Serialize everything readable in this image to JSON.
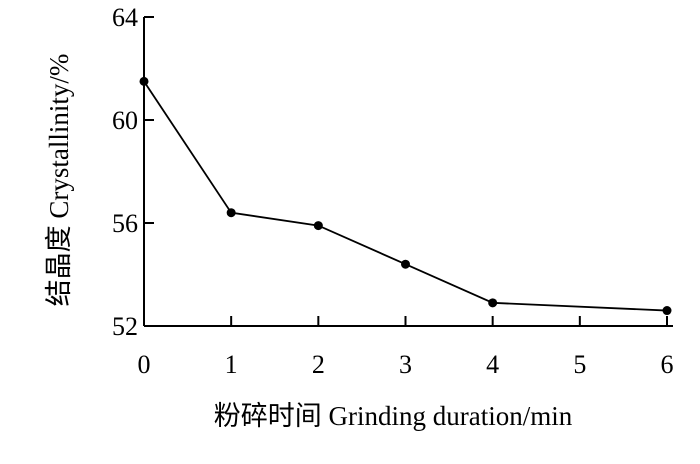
{
  "chart_data": {
    "type": "line",
    "x": [
      0,
      1,
      2,
      3,
      4,
      6
    ],
    "series": [
      {
        "values": [
          61.5,
          56.4,
          55.9,
          54.4,
          52.9,
          52.6
        ]
      }
    ],
    "xlabel": "粉碎时间  Grinding duration/min",
    "ylabel": "结晶度  Crystallinity/%",
    "xlim": [
      0,
      6
    ],
    "ylim": [
      52,
      64
    ],
    "x_ticks": [
      0,
      1,
      2,
      3,
      4,
      5,
      6
    ],
    "y_ticks": [
      52,
      56,
      60,
      64
    ],
    "x_tick_labels": [
      "0",
      "1",
      "2",
      "3",
      "4",
      "5",
      "6"
    ],
    "y_tick_labels": [
      "52",
      "56",
      "60",
      "64"
    ],
    "grid": false,
    "markers": "filled-circle",
    "line_color": "#000000"
  }
}
